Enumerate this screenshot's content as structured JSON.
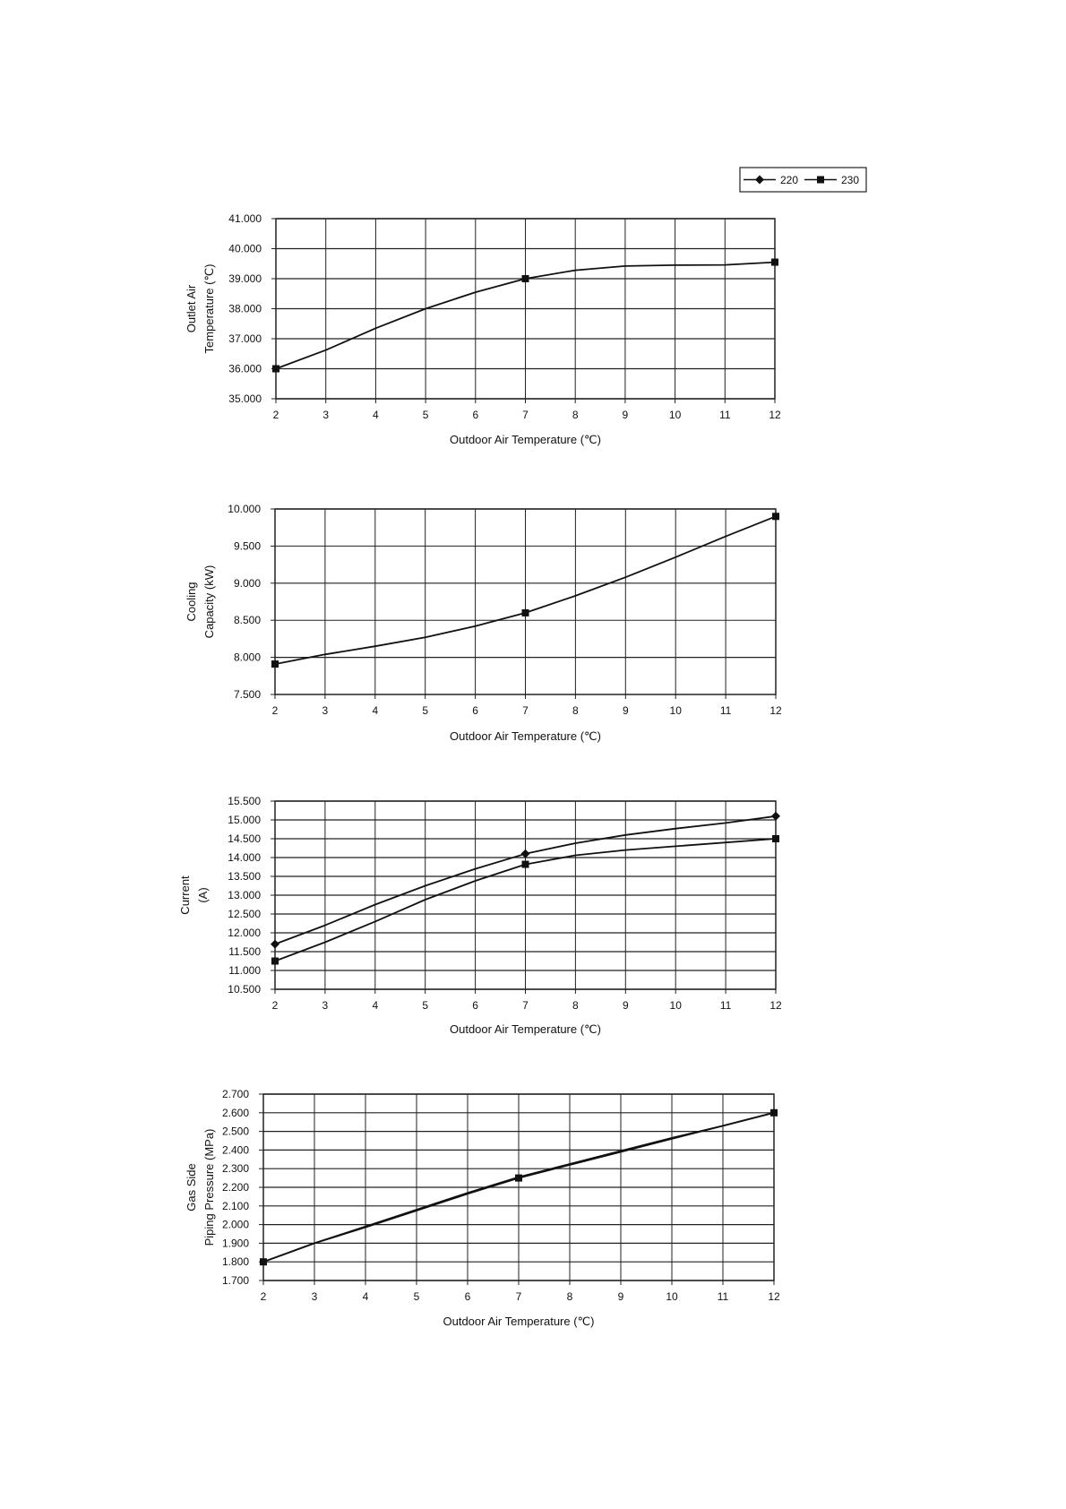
{
  "legend": {
    "entries": [
      {
        "label": "220",
        "marker": "diamond"
      },
      {
        "label": "230",
        "marker": "square"
      }
    ],
    "placement": "top-right"
  },
  "colors": {
    "line": "#111111",
    "grid": "#222222",
    "background": "#ffffff"
  },
  "chart_data": [
    {
      "type": "line",
      "title": "",
      "xlabel": "Outdoor Air Temperature (℃)",
      "ylabel": [
        "Outlet Air",
        "Temperature (℃)"
      ],
      "x_ticks": [
        "2",
        "3",
        "4",
        "5",
        "6",
        "7",
        "8",
        "9",
        "10",
        "11",
        "12"
      ],
      "y_ticks": [
        "41.000",
        "40.000",
        "39.000",
        "38.000",
        "37.000",
        "36.000",
        "35.000"
      ],
      "xlim": [
        2,
        12
      ],
      "ylim": [
        35,
        41
      ],
      "grid": true,
      "series": [
        {
          "name": "230",
          "marker": "square",
          "curve": [
            [
              2,
              36.0
            ],
            [
              3,
              36.62
            ],
            [
              4,
              37.35
            ],
            [
              5,
              38.0
            ],
            [
              6,
              38.55
            ],
            [
              7,
              39.0
            ],
            [
              8,
              39.28
            ],
            [
              9,
              39.42
            ],
            [
              10,
              39.45
            ],
            [
              11,
              39.46
            ],
            [
              12,
              39.55
            ]
          ],
          "markers": [
            [
              2,
              36.0
            ],
            [
              7,
              39.0
            ],
            [
              12,
              39.55
            ]
          ]
        }
      ]
    },
    {
      "type": "line",
      "title": "",
      "xlabel": "Outdoor Air Temperature (℃)",
      "ylabel": [
        "Cooling",
        "Capacity (kW)"
      ],
      "x_ticks": [
        "2",
        "3",
        "4",
        "5",
        "6",
        "7",
        "8",
        "9",
        "10",
        "11",
        "12"
      ],
      "y_ticks": [
        "10.000",
        "9.500",
        "9.000",
        "8.500",
        "8.000",
        "7.500"
      ],
      "xlim": [
        2,
        12
      ],
      "ylim": [
        7.5,
        10
      ],
      "grid": true,
      "series": [
        {
          "name": "230",
          "marker": "square",
          "curve": [
            [
              2,
              7.91
            ],
            [
              3,
              8.04
            ],
            [
              4,
              8.15
            ],
            [
              5,
              8.27
            ],
            [
              6,
              8.42
            ],
            [
              7,
              8.6
            ],
            [
              8,
              8.83
            ],
            [
              9,
              9.08
            ],
            [
              10,
              9.35
            ],
            [
              11,
              9.63
            ],
            [
              12,
              9.9
            ]
          ],
          "markers": [
            [
              2,
              7.91
            ],
            [
              7,
              8.6
            ],
            [
              12,
              9.9
            ]
          ]
        }
      ]
    },
    {
      "type": "line",
      "title": "",
      "xlabel": "Outdoor Air Temperature (℃)",
      "ylabel": [
        "Current",
        "(A)"
      ],
      "x_ticks": [
        "2",
        "3",
        "4",
        "5",
        "6",
        "7",
        "8",
        "9",
        "10",
        "11",
        "12"
      ],
      "y_ticks": [
        "15.500",
        "15.000",
        "14.500",
        "14.000",
        "13.500",
        "13.000",
        "12.500",
        "12.000",
        "11.500",
        "11.000",
        "10.500"
      ],
      "xlim": [
        2,
        12
      ],
      "ylim": [
        10.5,
        15.5
      ],
      "grid": true,
      "series": [
        {
          "name": "220",
          "marker": "diamond",
          "curve": [
            [
              2,
              11.7
            ],
            [
              3,
              12.2
            ],
            [
              4,
              12.75
            ],
            [
              5,
              13.25
            ],
            [
              6,
              13.7
            ],
            [
              7,
              14.1
            ],
            [
              8,
              14.38
            ],
            [
              9,
              14.6
            ],
            [
              10,
              14.77
            ],
            [
              11,
              14.92
            ],
            [
              12,
              15.1
            ]
          ],
          "markers": [
            [
              2,
              11.7
            ],
            [
              7,
              14.1
            ],
            [
              12,
              15.1
            ]
          ]
        },
        {
          "name": "230",
          "marker": "square",
          "curve": [
            [
              2,
              11.25
            ],
            [
              3,
              11.75
            ],
            [
              4,
              12.3
            ],
            [
              5,
              12.88
            ],
            [
              6,
              13.38
            ],
            [
              7,
              13.82
            ],
            [
              8,
              14.06
            ],
            [
              9,
              14.2
            ],
            [
              10,
              14.3
            ],
            [
              11,
              14.4
            ],
            [
              12,
              14.5
            ]
          ],
          "markers": [
            [
              2,
              11.25
            ],
            [
              7,
              13.82
            ],
            [
              12,
              14.5
            ]
          ]
        }
      ]
    },
    {
      "type": "line",
      "title": "",
      "xlabel": "Outdoor Air Temperature (℃)",
      "ylabel": [
        "Gas Side",
        "Piping Pressure (MPa)"
      ],
      "x_ticks": [
        "2",
        "3",
        "4",
        "5",
        "6",
        "7",
        "8",
        "9",
        "10",
        "11",
        "12"
      ],
      "y_ticks": [
        "2.700",
        "2.600",
        "2.500",
        "2.400",
        "2.300",
        "2.200",
        "2.100",
        "2.000",
        "1.900",
        "1.800",
        "1.700"
      ],
      "xlim": [
        2,
        12
      ],
      "ylim": [
        1.7,
        2.7
      ],
      "grid": true,
      "series": [
        {
          "name": "220",
          "marker": "diamond",
          "curve": [
            [
              2,
              1.8
            ],
            [
              3,
              1.9
            ],
            [
              4,
              1.99
            ],
            [
              5,
              2.08
            ],
            [
              6,
              2.17
            ],
            [
              7,
              2.255
            ],
            [
              8,
              2.325
            ],
            [
              9,
              2.395
            ],
            [
              10,
              2.465
            ],
            [
              11,
              2.53
            ],
            [
              12,
              2.6
            ]
          ],
          "markers": []
        },
        {
          "name": "230",
          "marker": "square",
          "curve": [
            [
              2,
              1.8
            ],
            [
              3,
              1.9
            ],
            [
              4,
              1.985
            ],
            [
              5,
              2.075
            ],
            [
              6,
              2.165
            ],
            [
              7,
              2.25
            ],
            [
              8,
              2.32
            ],
            [
              9,
              2.39
            ],
            [
              10,
              2.46
            ],
            [
              11,
              2.53
            ],
            [
              12,
              2.6
            ]
          ],
          "markers": [
            [
              2,
              1.8
            ],
            [
              7,
              2.25
            ],
            [
              12,
              2.6
            ]
          ]
        }
      ]
    }
  ]
}
